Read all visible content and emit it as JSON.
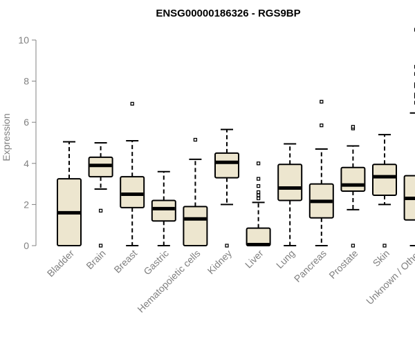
{
  "chart_data": {
    "type": "boxplot",
    "title": "ENSG00000186326 - RGS9BP",
    "ylabel": "Expression",
    "xlabel": "",
    "ylim": [
      0,
      10.5
    ],
    "yticks": [
      0,
      2,
      4,
      6,
      8,
      10
    ],
    "colors": {
      "box_fill": "#ede6cf",
      "box_stroke": "#000000",
      "median": "#000000",
      "axis": "#808080"
    },
    "categories": [
      "Bladder",
      "Brain",
      "Breast",
      "Gastric",
      "Hematopoietic cells",
      "Kidney",
      "Liver",
      "Lung",
      "Pancreas",
      "Prostate",
      "Skin",
      "Unknown / Other"
    ],
    "boxes": [
      {
        "label": "Bladder",
        "whisker_low": 0,
        "q1": 0,
        "median": 1.6,
        "q3": 3.25,
        "whisker_high": 5.05,
        "outliers": []
      },
      {
        "label": "Brain",
        "whisker_low": 2.75,
        "q1": 3.35,
        "median": 3.9,
        "q3": 4.3,
        "whisker_high": 5.0,
        "outliers": [
          1.7,
          0.0
        ]
      },
      {
        "label": "Breast",
        "whisker_low": 0,
        "q1": 1.85,
        "median": 2.5,
        "q3": 3.35,
        "whisker_high": 5.1,
        "outliers": [
          6.9
        ]
      },
      {
        "label": "Gastric",
        "whisker_low": 0,
        "q1": 1.2,
        "median": 1.8,
        "q3": 2.2,
        "whisker_high": 3.6,
        "outliers": []
      },
      {
        "label": "Hematopoietic cells",
        "whisker_low": 0,
        "q1": 0,
        "median": 1.3,
        "q3": 1.9,
        "whisker_high": 4.2,
        "outliers": [
          5.15
        ]
      },
      {
        "label": "Kidney",
        "whisker_low": 2.0,
        "q1": 3.3,
        "median": 4.05,
        "q3": 4.5,
        "whisker_high": 5.65,
        "outliers": [
          0.0
        ]
      },
      {
        "label": "Liver",
        "whisker_low": 0,
        "q1": 0,
        "median": 0.05,
        "q3": 0.85,
        "whisker_high": 2.1,
        "outliers": [
          2.3,
          2.45,
          2.6,
          2.9,
          3.25,
          4.0
        ]
      },
      {
        "label": "Lung",
        "whisker_low": 0,
        "q1": 2.2,
        "median": 2.8,
        "q3": 3.95,
        "whisker_high": 4.95,
        "outliers": []
      },
      {
        "label": "Pancreas",
        "whisker_low": 0,
        "q1": 1.35,
        "median": 2.15,
        "q3": 3.0,
        "whisker_high": 4.7,
        "outliers": [
          5.85,
          7.0
        ]
      },
      {
        "label": "Prostate",
        "whisker_low": 1.75,
        "q1": 2.65,
        "median": 2.95,
        "q3": 3.8,
        "whisker_high": 4.85,
        "outliers": [
          5.7,
          5.78,
          0.0
        ]
      },
      {
        "label": "Skin",
        "whisker_low": 2.0,
        "q1": 2.45,
        "median": 3.35,
        "q3": 3.95,
        "whisker_high": 5.4,
        "outliers": [
          0.0
        ]
      },
      {
        "label": "Unknown / Other",
        "whisker_low": 0,
        "q1": 1.25,
        "median": 2.3,
        "q3": 3.4,
        "whisker_high": 6.45,
        "outliers": [
          6.95,
          7.25,
          7.35,
          7.75,
          7.85,
          8.35,
          8.7,
          10.5
        ]
      }
    ]
  }
}
